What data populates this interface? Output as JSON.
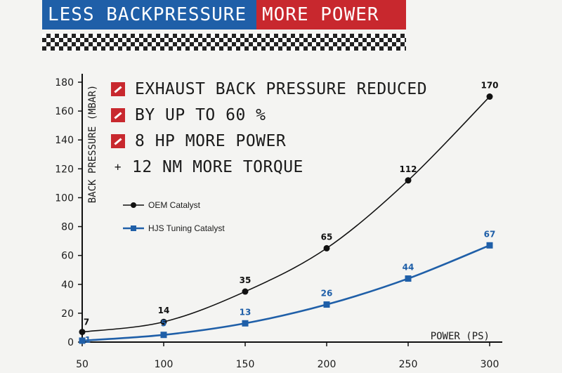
{
  "banner": {
    "left_text": "LESS BACKPRESSURE",
    "right_text": "MORE POWER",
    "left_color": "#1f5fa8",
    "right_color": "#c8282e"
  },
  "bullets": [
    {
      "icon": "red-checkbox-icon",
      "text": "EXHAUST BACK PRESSURE REDUCED"
    },
    {
      "icon": "red-checkbox-icon",
      "text": "BY UP TO 60 %"
    },
    {
      "icon": "red-checkbox-icon",
      "text": "8 HP MORE POWER"
    },
    {
      "icon": "plus-icon",
      "text": "12 NM MORE TORQUE"
    }
  ],
  "chart_data": {
    "type": "line",
    "xlabel": "POWER (PS)",
    "ylabel": "BACK PRESSURE (MBAR)",
    "x": [
      50,
      100,
      150,
      200,
      250,
      300
    ],
    "xlim": [
      50,
      300
    ],
    "ylim": [
      0,
      180
    ],
    "xticks": [
      50,
      100,
      150,
      200,
      250,
      300
    ],
    "yticks": [
      0,
      20,
      40,
      60,
      80,
      100,
      120,
      140,
      160,
      180
    ],
    "grid": false,
    "legend_position": "left",
    "series": [
      {
        "name": "OEM Catalyst",
        "values": [
          7,
          14,
          35,
          65,
          112,
          170
        ],
        "color": "#111111",
        "marker": "circle",
        "labels": [
          "7",
          "14",
          "35",
          "65",
          "112",
          "170"
        ]
      },
      {
        "name": "HJS Tuning Catalyst",
        "values": [
          1,
          5,
          13,
          26,
          44,
          67
        ],
        "color": "#1f5fa8",
        "marker": "square",
        "labels": [
          "1",
          "5",
          "13",
          "26",
          "44",
          "67"
        ]
      }
    ]
  }
}
